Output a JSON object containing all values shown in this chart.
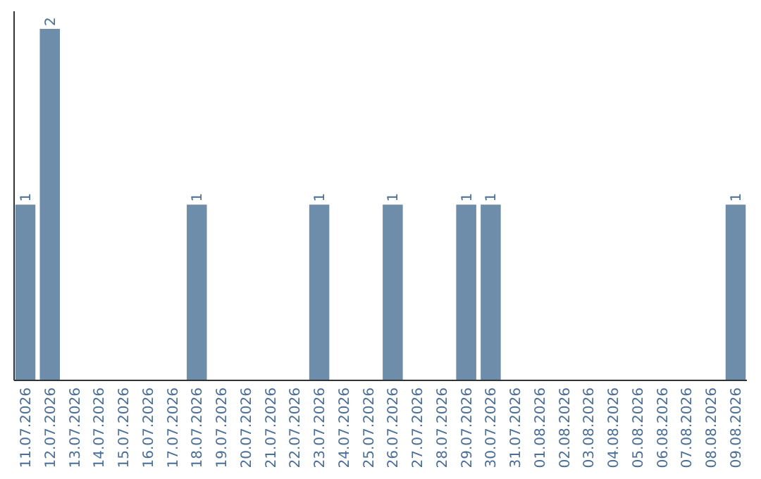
{
  "chart_data": {
    "type": "bar",
    "categories": [
      "11.07.2026",
      "12.07.2026",
      "13.07.2026",
      "14.07.2026",
      "15.07.2026",
      "16.07.2026",
      "17.07.2026",
      "18.07.2026",
      "19.07.2026",
      "20.07.2026",
      "21.07.2026",
      "22.07.2026",
      "23.07.2026",
      "24.07.2026",
      "25.07.2026",
      "26.07.2026",
      "27.07.2026",
      "28.07.2026",
      "29.07.2026",
      "30.07.2026",
      "31.07.2026",
      "01.08.2026",
      "02.08.2026",
      "03.08.2026",
      "04.08.2026",
      "05.08.2026",
      "06.08.2026",
      "07.08.2026",
      "08.08.2026",
      "09.08.2026"
    ],
    "values": [
      1,
      2,
      0,
      0,
      0,
      0,
      0,
      1,
      0,
      0,
      0,
      0,
      1,
      0,
      0,
      1,
      0,
      0,
      1,
      1,
      0,
      0,
      0,
      0,
      0,
      0,
      0,
      0,
      0,
      1
    ],
    "value_labels": [
      "1",
      "2",
      null,
      null,
      null,
      null,
      null,
      "1",
      null,
      null,
      null,
      null,
      "1",
      null,
      null,
      "1",
      null,
      null,
      "1",
      "1",
      null,
      null,
      null,
      null,
      null,
      null,
      null,
      null,
      null,
      "1"
    ],
    "color": "#6d8dab",
    "ylim": [
      0,
      2.1
    ],
    "tick_labels": "x"
  }
}
